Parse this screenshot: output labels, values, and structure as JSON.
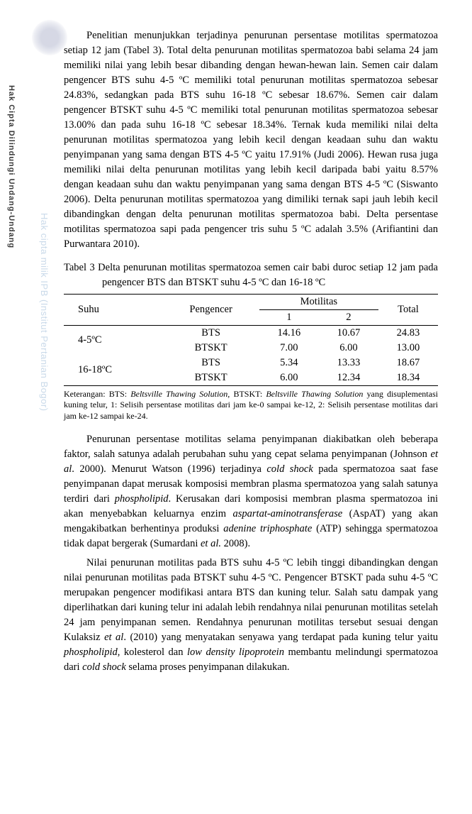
{
  "sidebar": {
    "copyright": "Hak Cipta Dilindungi Undang-Undang",
    "watermark": "Hak cipta milik IPB (Institut Pertanian Bogor)"
  },
  "para1": "Penelitian menunjukkan terjadinya penurunan persentase motilitas spermatozoa setiap 12 jam (Tabel 3). Total delta penurunan motilitas spermatozoa babi selama 24 jam memiliki nilai yang lebih besar dibanding dengan hewan-hewan lain. Semen cair dalam pengencer BTS suhu 4-5 ºC memiliki total penurunan motilitas spermatozoa sebesar 24.83%, sedangkan pada BTS suhu 16-18 ºC sebesar 18.67%. Semen cair dalam pengencer BTSKT suhu 4-5 ºC memiliki total penurunan motilitas spermatozoa sebesar 13.00% dan pada suhu 16-18 ºC sebesar 18.34%. Ternak kuda memiliki nilai delta penurunan motilitas spermatozoa yang lebih kecil dengan keadaan suhu dan waktu penyimpanan yang sama dengan BTS 4-5 ºC yaitu 17.91% (Judi 2006). Hewan rusa juga memiliki nilai delta penurunan motilitas yang lebih kecil daripada babi yaitu 8.57% dengan keadaan suhu dan waktu penyimpanan yang sama dengan BTS 4-5 ºC (Siswanto 2006). Delta penurunan motilitas spermatozoa yang dimiliki ternak sapi jauh lebih kecil dibandingkan dengan delta penurunan motilitas spermatozoa babi. Delta persentase motilitas spermatozoa sapi pada pengencer tris suhu 5 ºC adalah 3.5% (Arifiantini dan Purwantara 2010).",
  "table_caption": "Tabel 3 Delta penurunan motilitas spermatozoa semen cair babi duroc setiap 12 jam pada pengencer BTS dan BTSKT suhu 4-5 ºC dan 16-18 ºC",
  "table": {
    "headers": {
      "suhu": "Suhu",
      "pengencer": "Pengencer",
      "motilitas": "Motilitas",
      "m1": "1",
      "m2": "2",
      "total": "Total"
    },
    "rows": [
      {
        "suhu": "4-5ºC",
        "pengencer": "BTS",
        "m1": "14.16",
        "m2": "10.67",
        "total": "24.83"
      },
      {
        "suhu": "",
        "pengencer": "BTSKT",
        "m1": "7.00",
        "m2": "6.00",
        "total": "13.00"
      },
      {
        "suhu": "16-18ºC",
        "pengencer": "BTS",
        "m1": "5.34",
        "m2": "13.33",
        "total": "18.67"
      },
      {
        "suhu": "",
        "pengencer": "BTSKT",
        "m1": "6.00",
        "m2": "12.34",
        "total": "18.34"
      }
    ]
  },
  "table_note_prefix": "Keterangan: BTS: ",
  "table_note_i1": "Beltsville Thawing Solution",
  "table_note_mid": ", BTSKT: ",
  "table_note_i2": "Beltsville Thawing Solution",
  "table_note_suffix": " yang disuplementasi kuning telur, 1: Selisih persentase motilitas dari jam ke-0 sampai ke-12, 2: Selisih persentase motilitas dari jam ke-12 sampai ke-24.",
  "para2_a": "Penurunan persentase motilitas selama penyimpanan diakibatkan oleh beberapa faktor, salah satunya adalah perubahan suhu yang cepat selama penyimpanan (Johnson ",
  "para2_i1": "et al",
  "para2_b": ". 2000). Menurut Watson (1996) terjadinya ",
  "para2_i2": "cold shock",
  "para2_c": " pada spermatozoa saat fase penyimpanan dapat merusak komposisi membran plasma spermatozoa yang salah satunya terdiri dari ",
  "para2_i3": "phospholipid",
  "para2_d": ". Kerusakan dari komposisi membran plasma spermatozoa ini akan menyebabkan keluarnya enzim ",
  "para2_i4": "aspartat-aminotransferase",
  "para2_e": " (AspAT) yang akan mengakibatkan berhentinya produksi ",
  "para2_i5": "adenine triphosphate",
  "para2_f": " (ATP) sehingga spermatozoa tidak dapat bergerak (Sumardani ",
  "para2_i6": "et al.",
  "para2_g": " 2008).",
  "para3_a": "Nilai penurunan motilitas pada BTS suhu 4-5 ºC lebih tinggi dibandingkan dengan nilai penurunan motilitas pada BTSKT suhu 4-5 ºC. Pengencer BTSKT pada suhu 4-5 ºC merupakan pengencer modifikasi antara BTS dan kuning telur. Salah satu dampak yang diperlihatkan dari kuning telur ini adalah lebih rendahnya nilai penurunan motilitas setelah 24 jam penyimpanan semen. Rendahnya penurunan motilitas tersebut sesuai dengan Kulaksiz ",
  "para3_i1": "et al",
  "para3_b": ". (2010) yang menyatakan senyawa yang terdapat pada kuning telur yaitu ",
  "para3_i2": "phospholipid",
  "para3_c": ", kolesterol dan ",
  "para3_i3": "low density lipoprotein",
  "para3_d": " membantu melindungi spermatozoa dari ",
  "para3_i4": "cold shock",
  "para3_e": " selama proses penyimpanan dilakukan."
}
